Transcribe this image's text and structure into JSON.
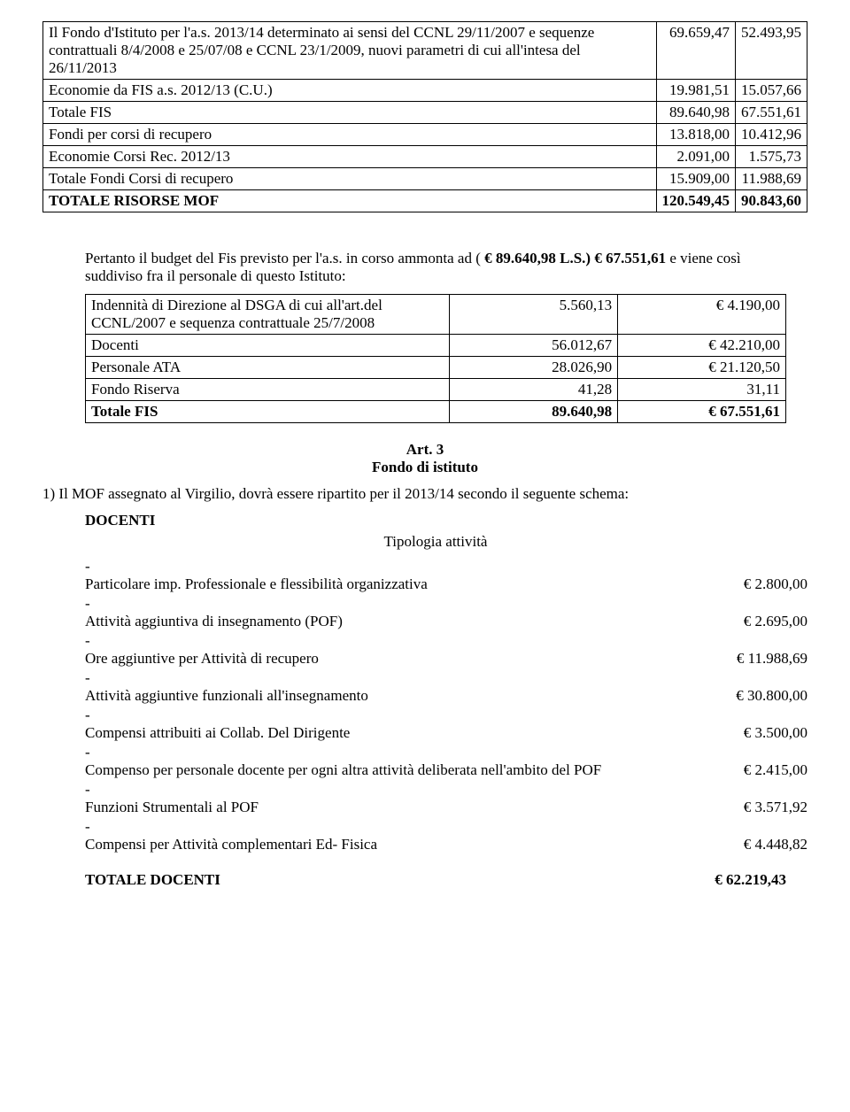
{
  "table1": {
    "rows": [
      {
        "label": "Il Fondo d'Istituto per l'a.s. 2013/14  determinato ai sensi del CCNL 29/11/2007 e sequenze contrattuali 8/4/2008 e 25/07/08 e CCNL 23/1/2009, nuovi parametri di cui all'intesa del 26/11/2013",
        "c1": "69.659,47",
        "c2": "52.493,95"
      },
      {
        "label": "Economie da FIS  a.s. 2012/13 (C.U.)",
        "c1": "19.981,51",
        "c2": "15.057,66"
      },
      {
        "label": "Totale FIS",
        "c1": "89.640,98",
        "c2": "67.551,61"
      },
      {
        "label": "Fondi per corsi di recupero",
        "c1": "13.818,00",
        "c2": "10.412,96"
      },
      {
        "label": "Economie Corsi Rec. 2012/13",
        "c1": "2.091,00",
        "c2": "1.575,73"
      },
      {
        "label": "Totale Fondi Corsi di recupero",
        "c1": "15.909,00",
        "c2": "11.988,69"
      },
      {
        "label": "TOTALE RISORSE MOF",
        "c1": "120.549,45",
        "c2": "90.843,60",
        "bold": true
      }
    ]
  },
  "budget_intro_1": "Pertanto il budget del Fis previsto per l'a.s. in corso ammonta ad ( ",
  "budget_intro_bold": "€  89.640,98  L.S.) €  67.551,61",
  "budget_intro_2": "   e viene così suddiviso fra il personale di questo Istituto:",
  "table2": {
    "rows": [
      {
        "label": "Indennità di Direzione al DSGA  di cui all'art.del CCNL/2007 e sequenza contrattuale 25/7/2008",
        "c1": "5.560,13",
        "c2": "€       4.190,00"
      },
      {
        "label": "Docenti",
        "c1": "56.012,67",
        "c2": "€     42.210,00"
      },
      {
        "label": "Personale ATA",
        "c1": "28.026,90",
        "c2": "€     21.120,50"
      },
      {
        "label": "Fondo Riserva",
        "c1": "41,28",
        "c2": "31,11"
      },
      {
        "label": "Totale  FIS",
        "c1": "89.640,98",
        "c2": "€     67.551,61",
        "bold": true
      }
    ]
  },
  "art3_title": "Art. 3",
  "art3_sub": "Fondo di istituto",
  "mof_line": "1)  Il MOF  assegnato al Virgilio, dovrà essere ripartito per il 2013/14  secondo il seguente schema:",
  "docenti_heading": "DOCENTI",
  "tipologia": "Tipologia attività",
  "docenti_items": [
    {
      "label": "Particolare imp. Professionale e flessibilità organizzativa",
      "amount": "€     2.800,00"
    },
    {
      "label": "Attività aggiuntiva di insegnamento (POF)",
      "amount": "€     2.695,00"
    },
    {
      "label": "Ore aggiuntive per Attività di recupero",
      "amount": "€   11.988,69"
    },
    {
      "label": "Attività aggiuntive funzionali all'insegnamento",
      "amount": "€   30.800,00"
    },
    {
      "label": "Compensi attribuiti ai Collab. Del Dirigente",
      "amount": "€     3.500,00"
    },
    {
      "label": "Compenso per personale docente per ogni altra attività deliberata nell'ambito del POF",
      "amount": "€     2.415,00"
    },
    {
      "label": "Funzioni Strumentali al POF",
      "amount": "€     3.571,92"
    },
    {
      "label": "Compensi per Attività complementari Ed- Fisica",
      "amount": "€     4.448,82"
    }
  ],
  "totale_docenti_label": "TOTALE  DOCENTI",
  "totale_docenti_amount": "€   62.219,43"
}
